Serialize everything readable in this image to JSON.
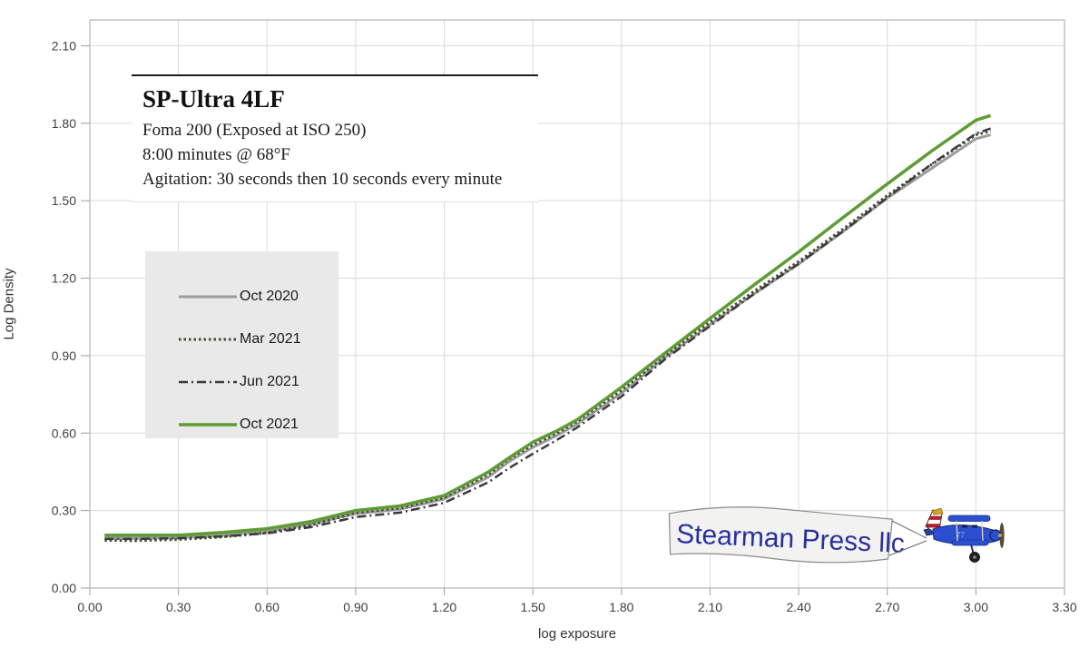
{
  "header": {
    "title": "SP-Ultra 4LF",
    "line1": "Foma 200 (Exposed at ISO 250)",
    "line2": "8:00 minutes @ 68°F",
    "line3": "Agitation: 30 seconds then 10 seconds every minute"
  },
  "banner": {
    "text": "Stearman Press llc"
  },
  "colors": {
    "grid": "#d9d9d9",
    "frame": "#b3b3b3",
    "tick": "#9e9e9e",
    "legend_bg": "#e9e9e9",
    "banner_text": "#2a2f9e",
    "banner_fill": "#f2f2f0",
    "plane_blue": "#2b4fd0"
  },
  "chart_data": {
    "type": "line",
    "title": "SP-Ultra 4LF",
    "subtitle": "Foma 200 (Exposed at ISO 250), 8:00 minutes @ 68°F",
    "xlabel": "log exposure",
    "ylabel": "Log Density",
    "xlim": [
      0.0,
      3.3
    ],
    "ylim": [
      0.0,
      2.2
    ],
    "grid": true,
    "legend_position": "upper-left-inside",
    "xticks": [
      "0.00",
      "0.30",
      "0.60",
      "0.90",
      "1.20",
      "1.50",
      "1.80",
      "2.10",
      "2.40",
      "2.70",
      "3.00",
      "3.30"
    ],
    "yticks": [
      "0.00",
      "0.30",
      "0.60",
      "0.90",
      "1.20",
      "1.50",
      "1.80",
      "2.10"
    ],
    "x": [
      0.05,
      0.15,
      0.3,
      0.45,
      0.6,
      0.75,
      0.9,
      1.05,
      1.2,
      1.35,
      1.42,
      1.5,
      1.58,
      1.65,
      1.8,
      1.95,
      2.1,
      2.25,
      2.4,
      2.55,
      2.7,
      2.85,
      3.0,
      3.05
    ],
    "series": [
      {
        "name": "Oct 2020",
        "color": "#9c9c9c",
        "dash": "",
        "width": 3,
        "values": [
          0.195,
          0.193,
          0.195,
          0.205,
          0.22,
          0.248,
          0.288,
          0.305,
          0.345,
          0.43,
          0.49,
          0.545,
          0.59,
          0.635,
          0.755,
          0.895,
          1.02,
          1.14,
          1.255,
          1.38,
          1.51,
          1.625,
          1.74,
          1.755
        ]
      },
      {
        "name": "Mar 2021",
        "color": "#474a33",
        "dash": "2.5 3",
        "width": 3,
        "values": [
          0.185,
          0.183,
          0.188,
          0.198,
          0.214,
          0.244,
          0.292,
          0.31,
          0.35,
          0.44,
          0.5,
          0.555,
          0.598,
          0.645,
          0.765,
          0.902,
          1.03,
          1.15,
          1.265,
          1.39,
          1.52,
          1.64,
          1.755,
          1.77
        ]
      },
      {
        "name": "Jun 2021",
        "color": "#3b3b3b",
        "dash": "10 4 2 4",
        "width": 2.5,
        "values": [
          0.19,
          0.19,
          0.193,
          0.2,
          0.212,
          0.236,
          0.275,
          0.292,
          0.33,
          0.41,
          0.465,
          0.52,
          0.572,
          0.622,
          0.742,
          0.888,
          1.015,
          1.14,
          1.256,
          1.382,
          1.512,
          1.642,
          1.76,
          1.78
        ]
      },
      {
        "name": "Oct 2021",
        "color": "#5d9c34",
        "dash": "",
        "width": 3.5,
        "values": [
          0.205,
          0.205,
          0.205,
          0.215,
          0.23,
          0.258,
          0.3,
          0.318,
          0.358,
          0.45,
          0.505,
          0.565,
          0.608,
          0.652,
          0.778,
          0.912,
          1.045,
          1.175,
          1.302,
          1.435,
          1.565,
          1.692,
          1.812,
          1.83
        ]
      }
    ]
  }
}
